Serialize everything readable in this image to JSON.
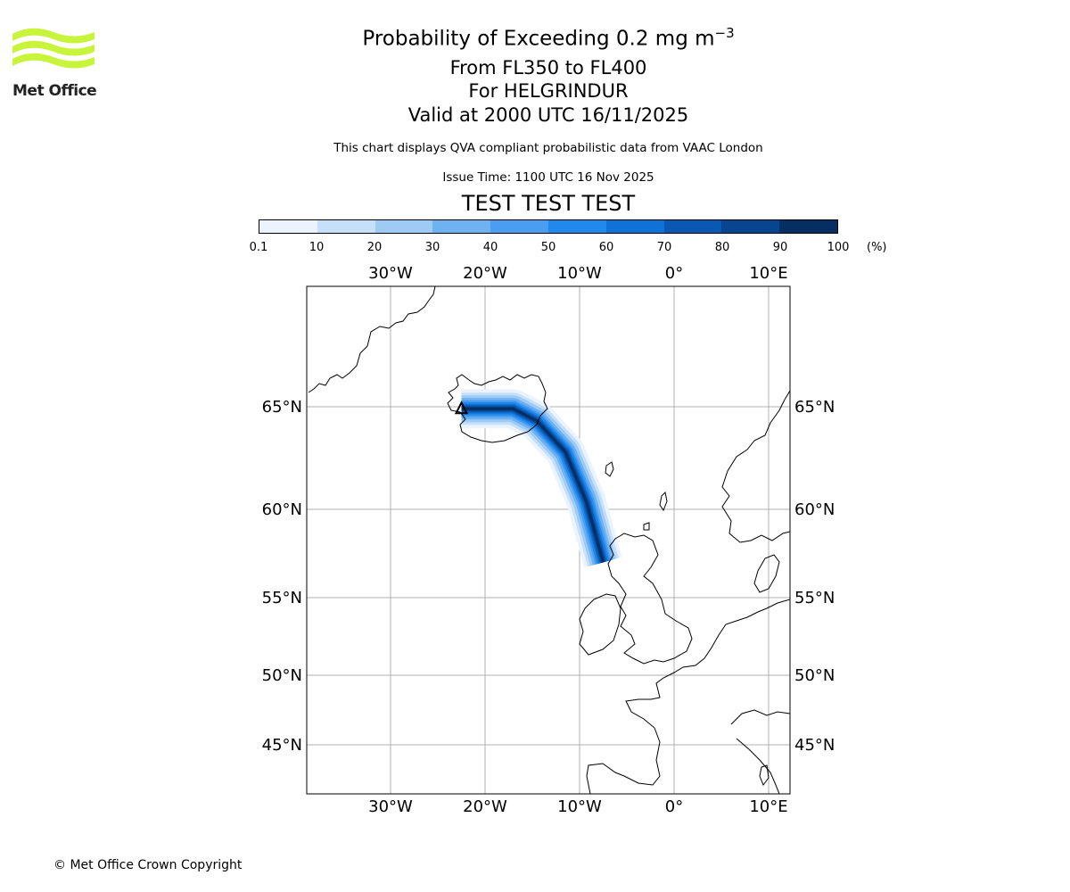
{
  "title": {
    "line1_prefix": "Probability of Exceeding 0.2 mg m",
    "line1_exp": "−3",
    "line2": "From FL350 to FL400",
    "line3": "For HELGRINDUR",
    "line4": "Valid at 2000 UTC 16/11/2025"
  },
  "disclaimer": "This chart displays QVA compliant probabilistic data from VAAC London",
  "issue_time": "Issue Time: 1100 UTC 16 Nov 2025",
  "test_banner": "TEST TEST TEST",
  "logo": {
    "name": "Met Office",
    "color": "#c8f53c"
  },
  "copyright": "© Met Office Crown Copyright",
  "colorbar": {
    "ticks": [
      "0.1",
      "10",
      "20",
      "30",
      "40",
      "50",
      "60",
      "70",
      "80",
      "90",
      "100"
    ],
    "unit": "(%)",
    "colors": [
      "#ebf3fd",
      "#c6e0f9",
      "#9dcbf6",
      "#6fb2f2",
      "#4a9df0",
      "#2089eb",
      "#0f72d6",
      "#0959b4",
      "#074590",
      "#052f62"
    ]
  },
  "map": {
    "lon_labels": [
      "30°W",
      "20°W",
      "10°W",
      "0°",
      "10°E"
    ],
    "lat_labels": [
      "65°N",
      "60°N",
      "55°N",
      "50°N",
      "45°N"
    ]
  },
  "chart_data": {
    "type": "heatmap",
    "title": "Probability of Exceeding 0.2 mg m−3",
    "variable": "probability (%)",
    "levels": [
      0.1,
      10,
      20,
      30,
      40,
      50,
      60,
      70,
      80,
      90,
      100
    ],
    "plume_centerline": [
      {
        "lon": -22.5,
        "lat": 64.9,
        "p": 95
      },
      {
        "lon": -17.0,
        "lat": 64.9,
        "p": 95
      },
      {
        "lon": -14.5,
        "lat": 64.3,
        "p": 95
      },
      {
        "lon": -11.5,
        "lat": 62.8,
        "p": 95
      },
      {
        "lon": -9.3,
        "lat": 60.4,
        "p": 95
      },
      {
        "lon": -7.5,
        "lat": 57.0,
        "p": 90
      }
    ]
  }
}
